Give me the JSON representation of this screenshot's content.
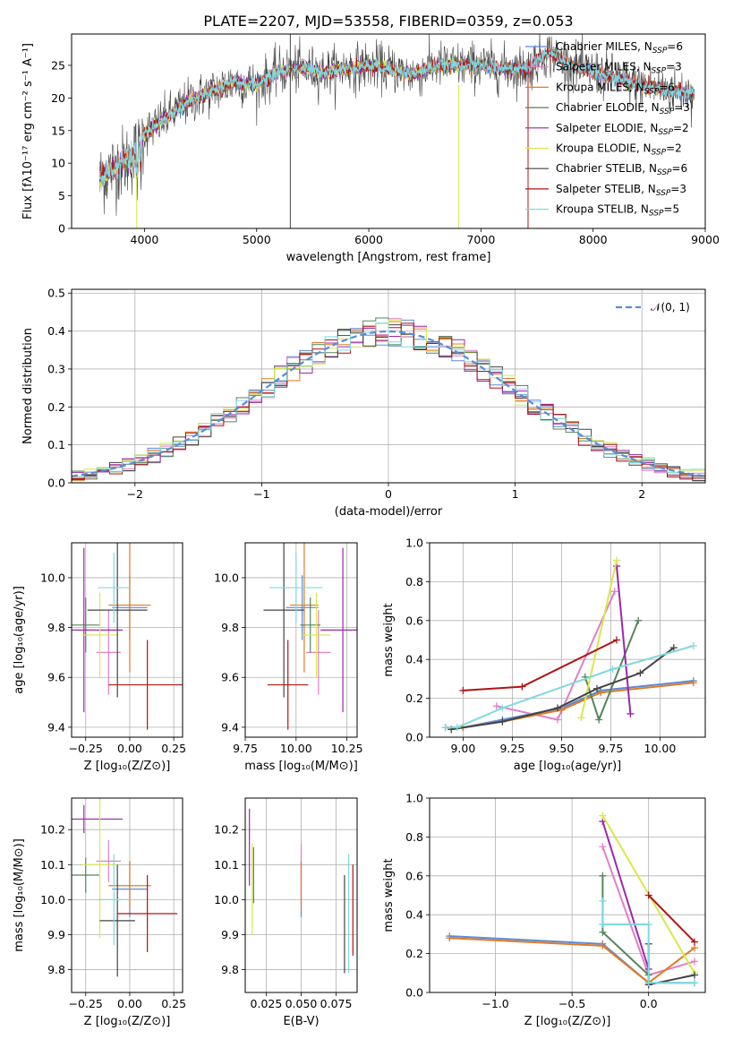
{
  "title": "PLATE=2207, MJD=53558, FIBERID=0359, z=0.053",
  "colors": {
    "Chabrier MILES": "#5b8bd6",
    "Salpeter MILES": "#e27fc6",
    "Kroupa MILES": "#e07b25",
    "Chabrier ELODIE": "#55855a",
    "Salpeter ELODIE": "#9b27a9",
    "Kroupa ELODIE": "#d9e84a",
    "Chabrier STELIB": "#444444",
    "Salpeter STELIB": "#b01515",
    "Kroupa STELIB": "#7fd9e0",
    "gauss": "#5b8bd6"
  },
  "chart_data": [
    {
      "type": "line",
      "id": "spectrum",
      "title": "PLATE=2207, MJD=53558, FIBERID=0359, z=0.053",
      "xlabel": "wavelength [Angstrom, rest frame]",
      "ylabel": "Flux [fλ10⁻¹⁷ erg cm⁻² s⁻¹ A⁻¹]",
      "xlim": [
        3350,
        9000
      ],
      "ylim": [
        0,
        29.8
      ],
      "xticks": [
        4000,
        5000,
        6000,
        7000,
        8000,
        9000
      ],
      "yticks": [
        0,
        5,
        10,
        15,
        20,
        25
      ],
      "grid": false,
      "legend_position": "top-right",
      "legend": [
        {
          "label": "Chabrier MILES, N",
          "sub": "SSP",
          "suffix": "=6",
          "color_key": "Chabrier MILES"
        },
        {
          "label": "Salpeter MILES, N",
          "sub": "SSP",
          "suffix": "=3",
          "color_key": "Salpeter MILES"
        },
        {
          "label": "Kroupa MILES, N",
          "sub": "SSP",
          "suffix": "=6",
          "color_key": "Kroupa MILES"
        },
        {
          "label": "Chabrier ELODIE, N",
          "sub": "SSP",
          "suffix": "=3",
          "color_key": "Chabrier ELODIE"
        },
        {
          "label": "Salpeter ELODIE, N",
          "sub": "SSP",
          "suffix": "=2",
          "color_key": "Salpeter ELODIE"
        },
        {
          "label": "Kroupa ELODIE, N",
          "sub": "SSP",
          "suffix": "=2",
          "color_key": "Kroupa ELODIE"
        },
        {
          "label": "Chabrier STELIB, N",
          "sub": "SSP",
          "suffix": "=6",
          "color_key": "Chabrier STELIB"
        },
        {
          "label": "Salpeter STELIB, N",
          "sub": "SSP",
          "suffix": "=3",
          "color_key": "Salpeter STELIB"
        },
        {
          "label": "Kroupa STELIB, N",
          "sub": "SSP",
          "suffix": "=5",
          "color_key": "Kroupa STELIB"
        }
      ],
      "continuum": [
        [
          3600,
          7.5
        ],
        [
          3700,
          9
        ],
        [
          3800,
          10
        ],
        [
          3900,
          11
        ],
        [
          4000,
          14.5
        ],
        [
          4200,
          17
        ],
        [
          4400,
          19.5
        ],
        [
          4600,
          21
        ],
        [
          4800,
          22.5
        ],
        [
          5000,
          22
        ],
        [
          5200,
          24
        ],
        [
          5400,
          24.5
        ],
        [
          5600,
          24
        ],
        [
          5800,
          24.5
        ],
        [
          6000,
          25
        ],
        [
          6200,
          24.5
        ],
        [
          6400,
          23.5
        ],
        [
          6600,
          25
        ],
        [
          6800,
          25
        ],
        [
          7000,
          25
        ],
        [
          7200,
          24.5
        ],
        [
          7400,
          24.5
        ],
        [
          7600,
          27
        ],
        [
          7700,
          26
        ],
        [
          7800,
          25
        ],
        [
          8000,
          24
        ],
        [
          8200,
          23
        ],
        [
          8400,
          22
        ],
        [
          8600,
          21.5
        ],
        [
          8700,
          21
        ],
        [
          8800,
          21
        ],
        [
          8900,
          20.5
        ]
      ],
      "spikes": [
        {
          "x": 5300,
          "y_from": 0,
          "y_to": 29.8,
          "color_key": "Chabrier STELIB"
        },
        {
          "x": 6800,
          "y_from": 0,
          "y_to": 22,
          "color_key": "Kroupa ELODIE"
        },
        {
          "x": 7420,
          "y_from": 0,
          "y_to": 26,
          "color_key": "Salpeter STELIB"
        },
        {
          "x": 3930,
          "y_from": 0,
          "y_to": 8,
          "color_key": "Kroupa ELODIE"
        }
      ]
    },
    {
      "type": "histogram",
      "id": "residuals",
      "xlabel": "(data-model)/error",
      "ylabel": "Normed distribution",
      "xlim": [
        -2.5,
        2.5
      ],
      "ylim": [
        0,
        0.51
      ],
      "xticks": [
        -2,
        -1,
        0,
        1,
        2
      ],
      "yticks": [
        0.0,
        0.1,
        0.2,
        0.3,
        0.4,
        0.5
      ],
      "grid": true,
      "legend_position": "top-right",
      "bin_width": 0.1,
      "gaussian_label": "𝒩(0, 1)",
      "gaussian": {
        "mean": 0,
        "sigma": 1
      }
    },
    {
      "type": "scatter",
      "id": "age_vs_Z",
      "xlabel": "Z [log₁₀(Z/Z⊙)]",
      "ylabel": "age  [log₁₀(age/yr)]",
      "xlim": [
        -0.33,
        0.3
      ],
      "ylim": [
        9.36,
        10.14
      ],
      "xticks": [
        -0.25,
        0.0,
        0.25
      ],
      "xticklabels": [
        "−0.25",
        "0.00",
        "0.25"
      ],
      "yticks": [
        9.4,
        9.6,
        9.8,
        10.0
      ],
      "grid": true,
      "points": [
        {
          "x": 0.0,
          "xerr": 0.1,
          "y": 9.88,
          "yerr": 0.13,
          "color_key": "Chabrier MILES"
        },
        {
          "x": -0.12,
          "xerr": 0.07,
          "y": 9.7,
          "yerr": 0.17,
          "color_key": "Salpeter MILES"
        },
        {
          "x": 0.0,
          "xerr": 0.12,
          "y": 9.89,
          "yerr": 0.27,
          "color_key": "Kroupa MILES"
        },
        {
          "x": -0.25,
          "xerr": 0.08,
          "y": 9.81,
          "yerr": 0.11,
          "color_key": "Chabrier ELODIE"
        },
        {
          "x": -0.26,
          "xerr": 0.22,
          "y": 9.79,
          "yerr": 0.33,
          "color_key": "Salpeter ELODIE"
        },
        {
          "x": -0.17,
          "xerr": 0.1,
          "y": 9.77,
          "yerr": 0.17,
          "color_key": "Kroupa ELODIE"
        },
        {
          "x": -0.07,
          "xerr": 0.17,
          "y": 9.87,
          "yerr": 0.35,
          "color_key": "Chabrier STELIB"
        },
        {
          "x": 0.1,
          "xerr": 0.22,
          "y": 9.57,
          "yerr": 0.18,
          "color_key": "Salpeter STELIB"
        },
        {
          "x": -0.09,
          "xerr": 0.09,
          "y": 9.96,
          "yerr": 0.14,
          "color_key": "Kroupa STELIB"
        }
      ]
    },
    {
      "type": "scatter",
      "id": "age_vs_mass",
      "xlabel": "mass [log₁₀(M/M⊙)]",
      "xlim": [
        9.75,
        10.3
      ],
      "ylim": [
        9.36,
        10.14
      ],
      "xticks": [
        9.75,
        10.0,
        10.25
      ],
      "xticklabels": [
        "9.75",
        "10.00",
        "10.25"
      ],
      "yticks": [
        9.4,
        9.6,
        9.8,
        10.0
      ],
      "grid": true,
      "points": [
        {
          "x": 10.03,
          "xerr": 0.08,
          "y": 9.88,
          "yerr": 0.13,
          "color_key": "Chabrier MILES"
        },
        {
          "x": 10.11,
          "xerr": 0.06,
          "y": 9.7,
          "yerr": 0.17,
          "color_key": "Salpeter MILES"
        },
        {
          "x": 10.04,
          "xerr": 0.07,
          "y": 9.89,
          "yerr": 0.27,
          "color_key": "Kroupa MILES"
        },
        {
          "x": 10.07,
          "xerr": 0.05,
          "y": 9.81,
          "yerr": 0.11,
          "color_key": "Chabrier ELODIE"
        },
        {
          "x": 10.23,
          "xerr": 0.11,
          "y": 9.79,
          "yerr": 0.33,
          "color_key": "Salpeter ELODIE"
        },
        {
          "x": 10.1,
          "xerr": 0.07,
          "y": 9.77,
          "yerr": 0.17,
          "color_key": "Kroupa ELODIE"
        },
        {
          "x": 9.94,
          "xerr": 0.1,
          "y": 9.87,
          "yerr": 0.35,
          "color_key": "Chabrier STELIB"
        },
        {
          "x": 9.96,
          "xerr": 0.1,
          "y": 9.57,
          "yerr": 0.18,
          "color_key": "Salpeter STELIB"
        },
        {
          "x": 10.0,
          "xerr": 0.13,
          "y": 9.96,
          "yerr": 0.14,
          "color_key": "Kroupa STELIB"
        }
      ]
    },
    {
      "type": "line",
      "id": "weight_vs_age",
      "xlabel": "age  [log₁₀(age/yr)]",
      "ylabel": "mass weight",
      "xlim": [
        8.83,
        10.23
      ],
      "ylim": [
        0,
        1.0
      ],
      "xticks": [
        9.0,
        9.25,
        9.5,
        9.75,
        10.0
      ],
      "xticklabels": [
        "9.00",
        "9.25",
        "9.50",
        "9.75",
        "10.00"
      ],
      "yticks": [
        0.0,
        0.2,
        0.4,
        0.6,
        0.8,
        1.0
      ],
      "grid": true,
      "series": [
        {
          "color_key": "Chabrier MILES",
          "x": [
            8.91,
            9.0,
            9.2,
            9.5,
            9.7,
            10.17
          ],
          "y": [
            0.05,
            0.05,
            0.09,
            0.15,
            0.24,
            0.29
          ]
        },
        {
          "color_key": "Salpeter MILES",
          "x": [
            9.17,
            9.48,
            9.77
          ],
          "y": [
            0.16,
            0.09,
            0.75
          ]
        },
        {
          "color_key": "Kroupa MILES",
          "x": [
            8.91,
            9.0,
            9.2,
            9.5,
            9.7,
            10.17
          ],
          "y": [
            0.05,
            0.05,
            0.08,
            0.14,
            0.23,
            0.28
          ]
        },
        {
          "color_key": "Chabrier ELODIE",
          "x": [
            9.62,
            9.69,
            9.89
          ],
          "y": [
            0.31,
            0.09,
            0.6
          ]
        },
        {
          "color_key": "Salpeter ELODIE",
          "x": [
            9.78,
            9.85
          ],
          "y": [
            0.88,
            0.12
          ]
        },
        {
          "color_key": "Kroupa ELODIE",
          "x": [
            9.6,
            9.78
          ],
          "y": [
            0.1,
            0.91
          ]
        },
        {
          "color_key": "Chabrier STELIB",
          "x": [
            8.94,
            9.2,
            9.48,
            9.68,
            9.9,
            10.07
          ],
          "y": [
            0.04,
            0.08,
            0.15,
            0.25,
            0.33,
            0.46
          ]
        },
        {
          "color_key": "Salpeter STELIB",
          "x": [
            9.0,
            9.3,
            9.78
          ],
          "y": [
            0.24,
            0.26,
            0.5
          ]
        },
        {
          "color_key": "Kroupa STELIB",
          "x": [
            8.91,
            8.97,
            9.2,
            9.76,
            10.17
          ],
          "y": [
            0.05,
            0.05,
            0.15,
            0.35,
            0.47
          ]
        }
      ]
    },
    {
      "type": "scatter",
      "id": "mass_vs_Z",
      "xlabel": "Z [log₁₀(Z/Z⊙)]",
      "ylabel": "mass [log₁₀(M/M⊙)]",
      "xlim": [
        -0.33,
        0.3
      ],
      "ylim": [
        9.735,
        10.29
      ],
      "xticks": [
        -0.25,
        0.0,
        0.25
      ],
      "xticklabels": [
        "−0.25",
        "0.00",
        "0.25"
      ],
      "yticks": [
        9.8,
        9.9,
        10.0,
        10.1,
        10.2
      ],
      "grid": true,
      "points": [
        {
          "x": 0.0,
          "xerr": 0.1,
          "y": 10.03,
          "yerr": 0.08,
          "color_key": "Chabrier MILES"
        },
        {
          "x": -0.12,
          "xerr": 0.07,
          "y": 10.11,
          "yerr": 0.06,
          "color_key": "Salpeter MILES"
        },
        {
          "x": 0.0,
          "xerr": 0.12,
          "y": 10.04,
          "yerr": 0.07,
          "color_key": "Kroupa MILES"
        },
        {
          "x": -0.25,
          "xerr": 0.08,
          "y": 10.07,
          "yerr": 0.05,
          "color_key": "Chabrier ELODIE"
        },
        {
          "x": -0.26,
          "xerr": 0.22,
          "y": 10.23,
          "yerr": 0.04,
          "color_key": "Salpeter ELODIE"
        },
        {
          "x": -0.17,
          "xerr": 0.1,
          "y": 10.1,
          "yerr": 0.21,
          "color_key": "Kroupa ELODIE"
        },
        {
          "x": -0.07,
          "xerr": 0.1,
          "y": 9.94,
          "yerr": 0.16,
          "color_key": "Chabrier STELIB"
        },
        {
          "x": 0.1,
          "xerr": 0.17,
          "y": 9.96,
          "yerr": 0.11,
          "color_key": "Salpeter STELIB"
        },
        {
          "x": -0.09,
          "xerr": 0.09,
          "y": 10.0,
          "yerr": 0.13,
          "color_key": "Kroupa STELIB"
        }
      ]
    },
    {
      "type": "scatter",
      "id": "mass_vs_ebv",
      "xlabel": "E(B-V)",
      "xlim": [
        0.01,
        0.09
      ],
      "ylim": [
        9.735,
        10.29
      ],
      "xticks": [
        0.025,
        0.05,
        0.075
      ],
      "xticklabels": [
        "0.025",
        "0.050",
        "0.075"
      ],
      "yticks": [
        9.8,
        9.9,
        10.0,
        10.1,
        10.2
      ],
      "grid": true,
      "points": [
        {
          "x": 0.05,
          "xerr": 0,
          "y": 10.03,
          "yerr": 0.08,
          "color_key": "Chabrier MILES"
        },
        {
          "x": 0.05,
          "xerr": 0,
          "y": 10.11,
          "yerr": 0.05,
          "color_key": "Salpeter MILES"
        },
        {
          "x": 0.05,
          "xerr": 0,
          "y": 10.04,
          "yerr": 0.07,
          "color_key": "Kroupa MILES"
        },
        {
          "x": 0.016,
          "xerr": 0,
          "y": 10.07,
          "yerr": 0.08,
          "color_key": "Chabrier ELODIE"
        },
        {
          "x": 0.013,
          "xerr": 0,
          "y": 10.15,
          "yerr": 0.11,
          "color_key": "Salpeter ELODIE"
        },
        {
          "x": 0.015,
          "xerr": 0,
          "y": 10.03,
          "yerr": 0.13,
          "color_key": "Kroupa ELODIE"
        },
        {
          "x": 0.081,
          "xerr": 0,
          "y": 9.93,
          "yerr": 0.14,
          "color_key": "Chabrier STELIB"
        },
        {
          "x": 0.087,
          "xerr": 0,
          "y": 9.97,
          "yerr": 0.13,
          "color_key": "Salpeter STELIB"
        },
        {
          "x": 0.084,
          "xerr": 0,
          "y": 9.96,
          "yerr": 0.17,
          "color_key": "Kroupa STELIB"
        }
      ]
    },
    {
      "type": "line",
      "id": "weight_vs_Z",
      "xlabel": "Z [log₁₀(Z/Z⊙)]",
      "ylabel": "mass weight",
      "xlim": [
        -1.43,
        0.37
      ],
      "ylim": [
        0,
        1.0
      ],
      "xticks": [
        -1.0,
        -0.5,
        0.0
      ],
      "xticklabels": [
        "−1.0",
        "−0.5",
        "0.0"
      ],
      "yticks": [
        0.0,
        0.2,
        0.4,
        0.6,
        0.8,
        1.0
      ],
      "grid": true,
      "series": [
        {
          "color_key": "Chabrier MILES",
          "x": [
            -1.3,
            -0.3,
            0.0,
            0.3
          ],
          "y": [
            0.29,
            0.25,
            0.05,
            0.05
          ]
        },
        {
          "color_key": "Salpeter MILES",
          "x": [
            -0.3,
            0.0,
            0.3
          ],
          "y": [
            0.75,
            0.09,
            0.16
          ]
        },
        {
          "color_key": "Kroupa MILES",
          "x": [
            -1.3,
            -0.3,
            0.0,
            0.3
          ],
          "y": [
            0.28,
            0.24,
            0.05,
            0.23
          ]
        },
        {
          "color_key": "Chabrier ELODIE",
          "x": [
            -0.3,
            -0.3,
            0.0
          ],
          "y": [
            0.6,
            0.31,
            0.09
          ]
        },
        {
          "color_key": "Salpeter ELODIE",
          "x": [
            -0.3,
            0.0
          ],
          "y": [
            0.88,
            0.12
          ]
        },
        {
          "color_key": "Kroupa ELODIE",
          "x": [
            -0.3,
            0.3
          ],
          "y": [
            0.91,
            0.1
          ]
        },
        {
          "color_key": "Chabrier STELIB",
          "x": [
            0.0,
            0.0,
            0.3
          ],
          "y": [
            0.25,
            0.04,
            0.09
          ]
        },
        {
          "color_key": "Salpeter STELIB",
          "x": [
            0.0,
            0.3
          ],
          "y": [
            0.5,
            0.26
          ]
        },
        {
          "color_key": "Kroupa STELIB",
          "x": [
            -0.3,
            -0.3,
            0.0,
            0.0,
            0.3
          ],
          "y": [
            0.47,
            0.35,
            0.35,
            0.05,
            0.05
          ]
        }
      ]
    }
  ]
}
